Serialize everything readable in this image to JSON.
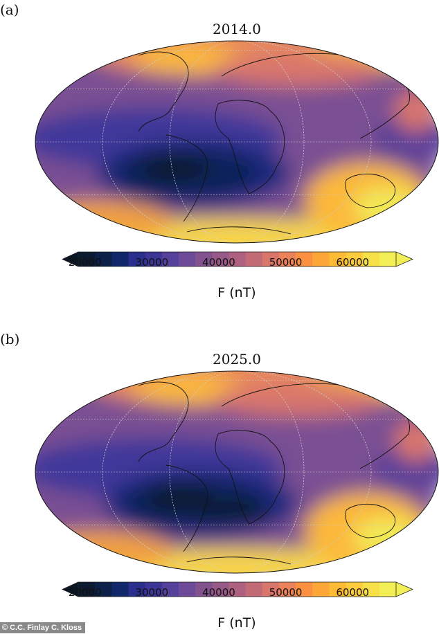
{
  "panels": [
    {
      "label": "(a)",
      "title": "2014.0"
    },
    {
      "label": "(b)",
      "title": "2025.0"
    }
  ],
  "colorbar": {
    "label": "F (nT)",
    "ticks": [
      "20000",
      "30000",
      "40000",
      "50000",
      "60000"
    ],
    "tick_values": [
      20000,
      30000,
      40000,
      50000,
      60000
    ],
    "range": [
      19000,
      66500
    ],
    "step": 2500,
    "extend": "both",
    "colors": [
      "#0b1a2e",
      "#0d2048",
      "#10286a",
      "#2a2f8e",
      "#3d3596",
      "#55409a",
      "#6d4a98",
      "#82528f",
      "#975a88",
      "#ad6080",
      "#c26b76",
      "#d8766c",
      "#ec8259",
      "#fb9140",
      "#fca637",
      "#fdba35",
      "#fccc3c",
      "#f7df48",
      "#f2ee56"
    ],
    "under_color": "#0a1624",
    "over_color": "#f2ee56"
  },
  "credit": "© C.C. Finlay C. Kloss"
}
